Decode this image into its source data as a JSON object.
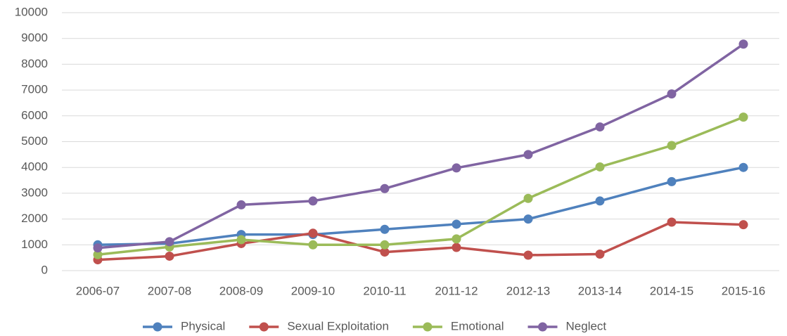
{
  "chart_data": {
    "type": "line",
    "categories": [
      "2006-07",
      "2007-08",
      "2008-09",
      "2009-10",
      "2010-11",
      "2011-12",
      "2012-13",
      "2013-14",
      "2014-15",
      "2015-16"
    ],
    "series": [
      {
        "name": "Physical",
        "color": "#4f81bd",
        "values": [
          1000,
          1050,
          1400,
          1400,
          1600,
          1800,
          2000,
          2700,
          3450,
          4000
        ]
      },
      {
        "name": "Sexual Exploitation",
        "color": "#c0504d",
        "values": [
          420,
          560,
          1050,
          1450,
          720,
          900,
          600,
          640,
          1880,
          1780
        ]
      },
      {
        "name": "Emotional",
        "color": "#9bbb59",
        "values": [
          620,
          920,
          1200,
          1000,
          1000,
          1230,
          2800,
          4020,
          4850,
          5950
        ]
      },
      {
        "name": "Neglect",
        "color": "#8064a2",
        "values": [
          880,
          1120,
          2550,
          2700,
          3180,
          3980,
          4500,
          5570,
          6850,
          8780
        ]
      }
    ],
    "ylim": [
      0,
      10000
    ],
    "yticks": [
      0,
      1000,
      2000,
      3000,
      4000,
      5000,
      6000,
      7000,
      8000,
      9000,
      10000
    ],
    "grid": true,
    "legend": "bottom"
  }
}
